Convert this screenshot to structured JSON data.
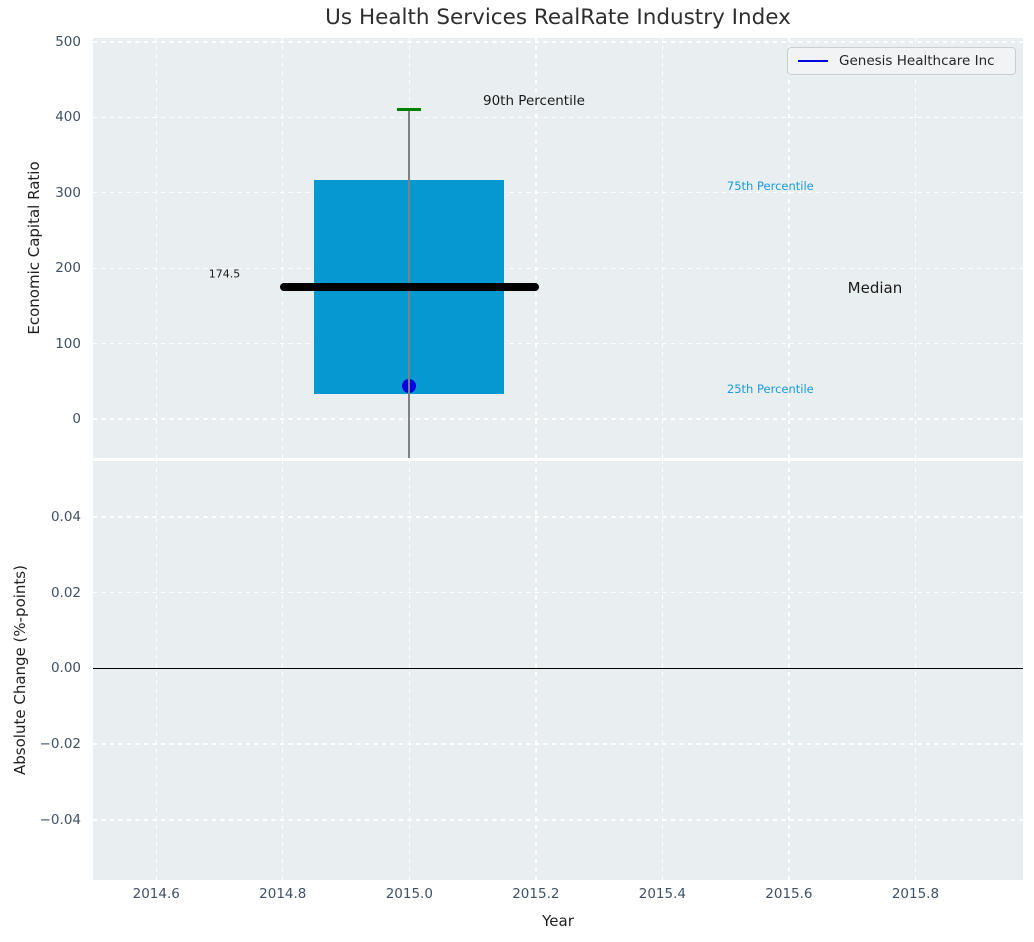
{
  "chart_data": {
    "type": "boxplot",
    "title": "Us Health Services RealRate Industry Index",
    "xlabel": "Year",
    "xlim": [
      2014.5,
      2015.97
    ],
    "xticks": [
      {
        "v": 2014.6,
        "label": "2014.6"
      },
      {
        "v": 2014.8,
        "label": "2014.8"
      },
      {
        "v": 2015.0,
        "label": "2015.0"
      },
      {
        "v": 2015.2,
        "label": "2015.2"
      },
      {
        "v": 2015.4,
        "label": "2015.4"
      },
      {
        "v": 2015.6,
        "label": "2015.6"
      },
      {
        "v": 2015.8,
        "label": "2015.8"
      }
    ],
    "legend": {
      "label": "Genesis Healthcare Inc",
      "position": "upper right"
    },
    "subplots": [
      {
        "name": "economic-capital-ratio",
        "ylabel": "Economic Capital Ratio",
        "ylim": [
          -51.7,
          505.3
        ],
        "yticks": [
          {
            "v": 500,
            "label": "500"
          },
          {
            "v": 400,
            "label": "400"
          },
          {
            "v": 300,
            "label": "300"
          },
          {
            "v": 200,
            "label": "200"
          },
          {
            "v": 100,
            "label": "100"
          },
          {
            "v": 0,
            "label": "0"
          }
        ],
        "grid": true,
        "boxplot": {
          "x": 2015.0,
          "p25": 33,
          "median": 174.5,
          "p75": 317,
          "p90": 410,
          "whisker_low_clipped": true,
          "box_halfwidth_years": 0.15,
          "median_halfwidth_years": 0.205,
          "cap_halfwidth_years": 0.019
        },
        "company_point": {
          "x": 2015.0,
          "value": 44,
          "series": "Genesis Healthcare Inc"
        },
        "annotations": [
          {
            "name": "label-90th-percentile",
            "text": "90th Percentile",
            "x": 2015.197,
            "y": 422,
            "align": "center",
            "color": "#1a1a1a",
            "size": 13.5
          },
          {
            "name": "label-75th-percentile",
            "text": "75th Percentile",
            "x": 2015.502,
            "y": 309,
            "align": "left",
            "color": "#189bd9",
            "size": 11.5
          },
          {
            "name": "label-median",
            "text": "Median",
            "x": 2015.736,
            "y": 174,
            "align": "center",
            "color": "#1a1a1a",
            "size": 15
          },
          {
            "name": "label-25th-percentile",
            "text": "25th Percentile",
            "x": 2015.502,
            "y": 40,
            "align": "left",
            "color": "#189bd9",
            "size": 11.5
          },
          {
            "name": "label-median-value",
            "text": "174.5",
            "x": 2014.683,
            "y": 192,
            "align": "left",
            "color": "#1a1a1a",
            "size": 11
          }
        ]
      },
      {
        "name": "absolute-change",
        "ylabel": "Absolute Change (%-points)",
        "ylim": [
          -0.0559,
          0.0548
        ],
        "yticks": [
          {
            "v": 0.04,
            "label": "0.04"
          },
          {
            "v": 0.02,
            "label": "0.02"
          },
          {
            "v": 0.0,
            "label": "0.00"
          },
          {
            "v": -0.02,
            "label": "−0.02"
          },
          {
            "v": -0.04,
            "label": "−0.04"
          }
        ],
        "grid": true,
        "zero_line": true
      }
    ],
    "colors": {
      "axes_bg": "#e9eef0",
      "grid": "#ffffff",
      "box_fill": "#0699d1",
      "median_line": "#000000",
      "whisker": "#808080",
      "cap_90th": "#008000",
      "company_point": "#0000e0",
      "percentile_label": "#189bd9",
      "tick_label": "#3f5166",
      "zero_line": "#000000"
    }
  }
}
